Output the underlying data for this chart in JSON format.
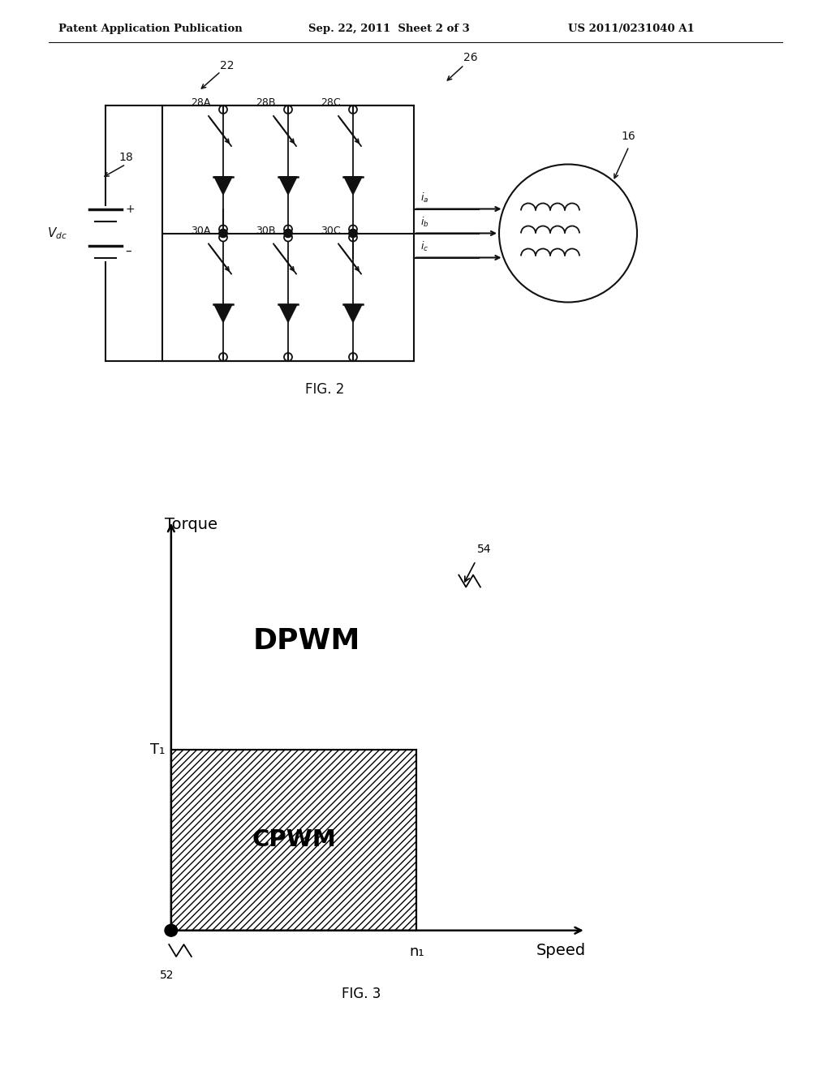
{
  "background_color": "#ffffff",
  "header_text": "Patent Application Publication",
  "header_date": "Sep. 22, 2011  Sheet 2 of 3",
  "header_patent": "US 2011/0231040 A1",
  "fig2_label": "FIG. 2",
  "fig3_label": "FIG. 3",
  "fig3_title_y": "Torque",
  "fig3_title_x": "Speed",
  "fig3_dpwm": "DPWM",
  "fig3_cpwm": "CPWM",
  "fig3_T1": "T₁",
  "fig3_n1": "n₁",
  "fig3_ref52": "52",
  "fig3_ref54": "54",
  "col": "#111111",
  "lw": 1.3,
  "lw_main": 1.5
}
